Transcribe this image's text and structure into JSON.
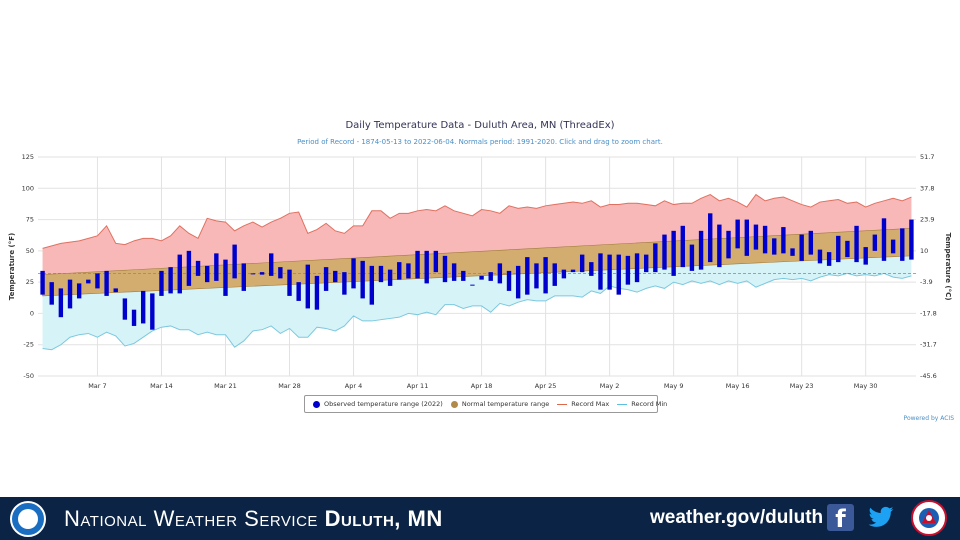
{
  "chart_data": {
    "type": "bar",
    "title": "Daily Temperature Data - Duluth Area, MN (ThreadEx)",
    "subtitle": "Period of Record - 1874-05-13 to 2022-06-04. Normals period: 1991-2020. Click and drag to zoom chart.",
    "ylabel_left": "Temperature (°F)",
    "ylabel_right": "Temperature (°C)",
    "ylim": [
      -50,
      125
    ],
    "yticks_left": [
      "125",
      "100",
      "75",
      "50",
      "25",
      "0",
      "-25",
      "-50"
    ],
    "yticks_right": [
      "51.7",
      "37.8",
      "23.9",
      "10",
      "-3.9",
      "-17.8",
      "-31.7",
      "-45.6"
    ],
    "xticks": [
      "Mar 7",
      "Mar 14",
      "Mar 21",
      "Mar 28",
      "Apr 4",
      "Apr 11",
      "Apr 18",
      "Apr 25",
      "May 2",
      "May 9",
      "May 16",
      "May 23",
      "May 30"
    ],
    "grid": true,
    "legend_position": "bottom",
    "series": [
      {
        "name": "Observed temperature range (2022)",
        "color": "#0000cc",
        "type": "range-bar",
        "lows": [
          15,
          7,
          -3,
          4,
          12,
          24,
          20,
          14,
          17,
          -5,
          -10,
          -8,
          -13,
          14,
          16,
          16,
          22,
          30,
          25,
          26,
          14,
          28,
          18,
          33,
          31,
          30,
          28,
          14,
          10,
          4,
          3,
          18,
          25,
          15,
          20,
          12,
          7,
          25,
          22,
          27,
          28,
          28,
          24,
          33,
          25,
          26,
          26,
          31,
          27,
          26,
          24,
          18,
          12,
          15,
          20,
          16,
          22,
          28,
          33,
          33,
          30,
          19,
          19,
          15,
          23,
          25,
          33,
          33,
          35,
          30,
          37,
          34,
          35,
          41,
          37,
          44,
          52,
          46,
          51,
          48,
          47,
          48,
          46,
          42,
          47,
          40,
          38,
          41,
          45,
          41,
          39,
          50,
          42,
          48,
          42,
          43
        ],
        "highs": [
          34,
          25,
          20,
          27,
          24,
          27,
          32,
          34,
          20,
          12,
          3,
          18,
          16,
          34,
          37,
          47,
          50,
          42,
          38,
          48,
          43,
          55,
          40,
          32,
          33,
          48,
          37,
          35,
          25,
          39,
          30,
          37,
          34,
          33,
          44,
          42,
          38,
          38,
          35,
          41,
          40,
          50,
          50,
          50,
          46,
          40,
          34,
          23,
          30,
          33,
          40,
          34,
          38,
          45,
          40,
          45,
          40,
          35,
          35,
          47,
          41,
          48,
          47,
          47,
          46,
          48,
          47,
          56,
          63,
          66,
          70,
          55,
          66,
          80,
          71,
          66,
          75,
          75,
          71,
          70,
          60,
          69,
          52,
          63,
          66,
          51,
          49,
          62,
          58,
          70,
          53,
          63,
          76,
          59,
          68,
          75,
          64
        ],
        "start": "Mar 1"
      },
      {
        "name": "Normal temperature range",
        "color": "#c8a46a",
        "type": "band",
        "low_start": 14,
        "low_end": 46,
        "high_start": 31,
        "high_end": 68
      },
      {
        "name": "Record Max",
        "color": "#f08080",
        "type": "line",
        "values": [
          52,
          54,
          56,
          57,
          58,
          60,
          62,
          70,
          56,
          55,
          58,
          60,
          60,
          58,
          62,
          70,
          64,
          60,
          76,
          74,
          73,
          66,
          70,
          73,
          69,
          73,
          76,
          80,
          81,
          64,
          67,
          72,
          66,
          64,
          70,
          70,
          82,
          82,
          76,
          80,
          80,
          82,
          83,
          82,
          86,
          82,
          80,
          78,
          83,
          82,
          80,
          86,
          84,
          85,
          84,
          86,
          87,
          88,
          89,
          88,
          90,
          85,
          87,
          87,
          88,
          88,
          87,
          86,
          90,
          87,
          88,
          88,
          92,
          95,
          90,
          92,
          89,
          85,
          95,
          90,
          92,
          93,
          90,
          87,
          85,
          89,
          90,
          91,
          88,
          89,
          85,
          88,
          90,
          92,
          90,
          93,
          88
        ]
      },
      {
        "name": "Record Min",
        "color": "#5bc0de",
        "type": "line",
        "values": [
          -28,
          -29,
          -25,
          -19,
          -17,
          -16,
          -19,
          -15,
          -18,
          -26,
          -24,
          -19,
          -14,
          -11,
          -10,
          -13,
          -13,
          -17,
          -15,
          -17,
          -17,
          -27,
          -22,
          -14,
          -13,
          -10,
          -16,
          -12,
          -19,
          -19,
          -11,
          -12,
          -14,
          -10,
          -2,
          -6,
          -6,
          -5,
          -4,
          -3,
          0,
          -1,
          1,
          -1,
          7,
          7,
          4,
          6,
          6,
          1,
          8,
          6,
          9,
          11,
          10,
          10,
          14,
          14,
          14,
          13,
          18,
          16,
          22,
          20,
          19,
          17,
          20,
          22,
          20,
          25,
          23,
          26,
          24,
          26,
          23,
          26,
          24,
          26,
          21,
          24,
          27,
          28,
          27,
          28,
          26,
          29,
          31,
          30,
          32,
          30,
          31,
          30,
          32,
          29,
          28,
          30,
          29
        ]
      }
    ]
  },
  "legend": {
    "observed": "Observed temperature range (2022)",
    "normal": "Normal temperature range",
    "record_max": "Record Max",
    "record_min": "Record Min"
  },
  "credit": "Powered by ACIS",
  "footer": {
    "org_prefix": "National Weather Service",
    "org_office": "Duluth, MN",
    "url": "weather.gov/duluth",
    "noaa_logo": "NOAA",
    "facebook_icon": "f",
    "colors": {
      "bar": "#0b2446"
    }
  }
}
